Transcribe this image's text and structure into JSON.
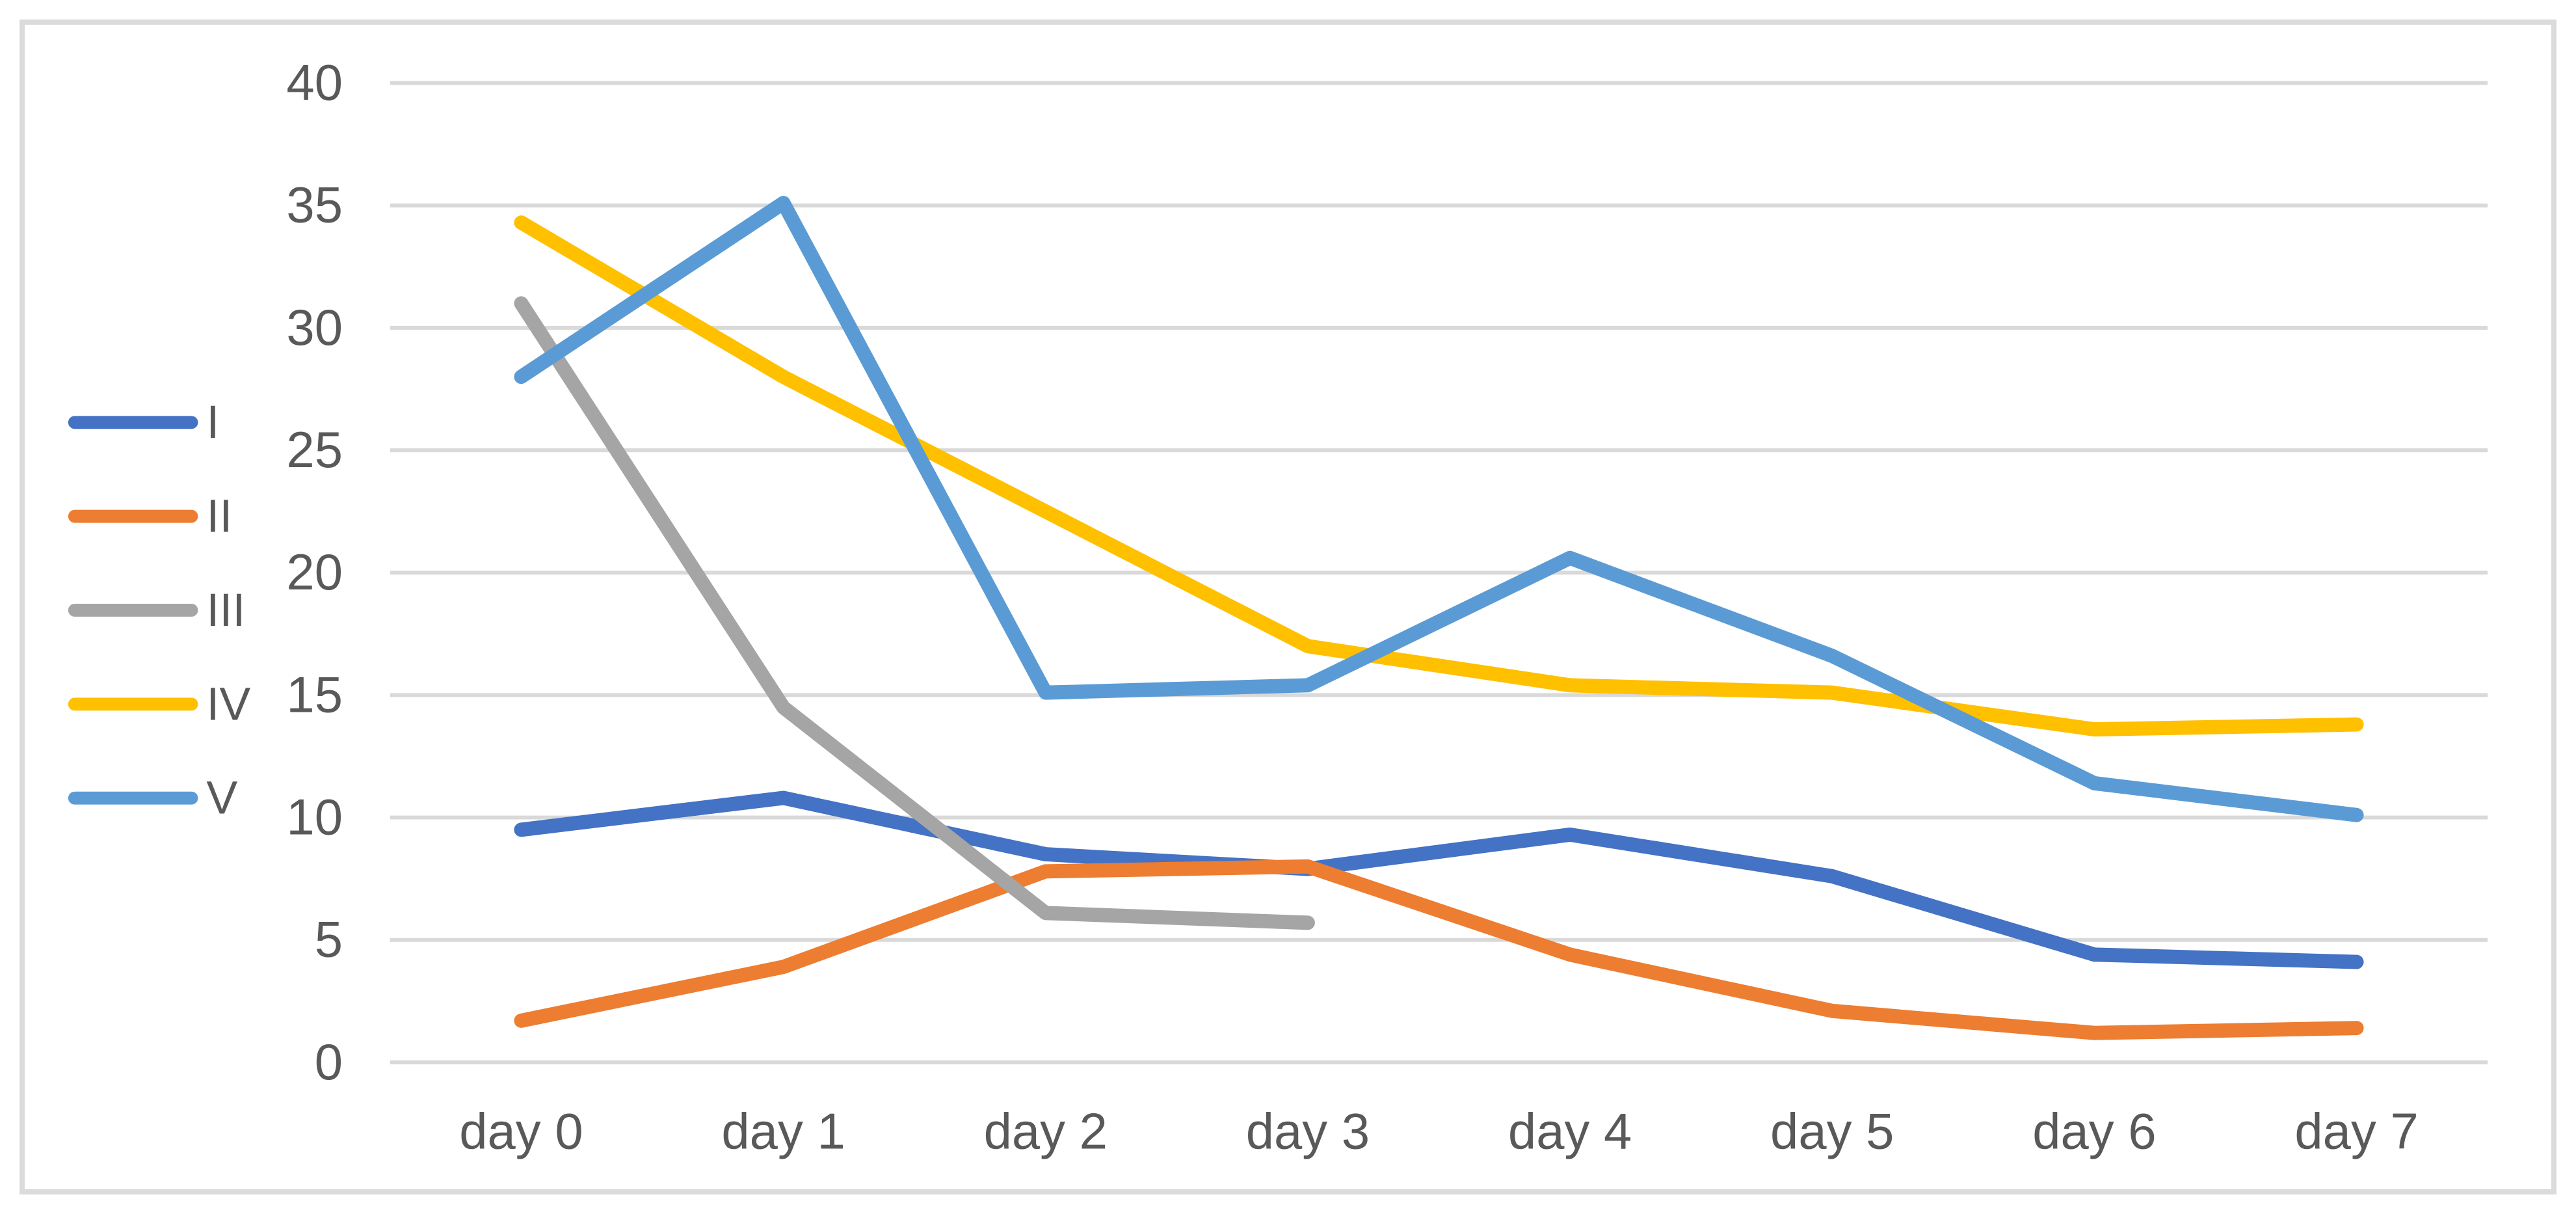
{
  "chart_data": {
    "type": "line",
    "title": "",
    "xlabel": "",
    "ylabel": "",
    "categories": [
      "day 0",
      "day 1",
      "day 2",
      "day 3",
      "day 4",
      "day 5",
      "day 6",
      "day 7"
    ],
    "series": [
      {
        "name": "I",
        "color": "#4472C4",
        "values": [
          9.5,
          10.8,
          8.5,
          7.9,
          9.3,
          7.6,
          4.4,
          4.1
        ]
      },
      {
        "name": "II",
        "color": "#ED7D31",
        "values": [
          1.7,
          3.9,
          7.8,
          8.0,
          4.4,
          2.1,
          1.2,
          1.4
        ]
      },
      {
        "name": "III",
        "color": "#A5A5A5",
        "values": [
          31,
          14.5,
          6.1,
          5.7,
          null,
          null,
          null,
          null
        ]
      },
      {
        "name": "IV",
        "color": "#FFC000",
        "values": [
          34.3,
          28,
          22.5,
          17,
          15.4,
          15.1,
          13.6,
          13.8
        ]
      },
      {
        "name": "V",
        "color": "#5B9BD5",
        "values": [
          28,
          35.1,
          15.1,
          15.4,
          20.6,
          16.6,
          11.4,
          10.1
        ]
      }
    ],
    "ylim": [
      0,
      40
    ],
    "yticks": [
      0,
      5,
      10,
      15,
      20,
      25,
      30,
      35,
      40
    ],
    "ytick_labels": [
      "0",
      "5",
      "10",
      "15",
      "20",
      "25",
      "30",
      "35",
      "40"
    ],
    "grid": true,
    "legend_position": "left-middle",
    "legend_labels": [
      "I",
      "II",
      "III",
      "IV",
      "V"
    ],
    "colors": {
      "gridline": "#D9D9D9",
      "axis_text": "#595959",
      "frame_border": "#DBDBDB",
      "background": "#FFFFFF"
    }
  }
}
